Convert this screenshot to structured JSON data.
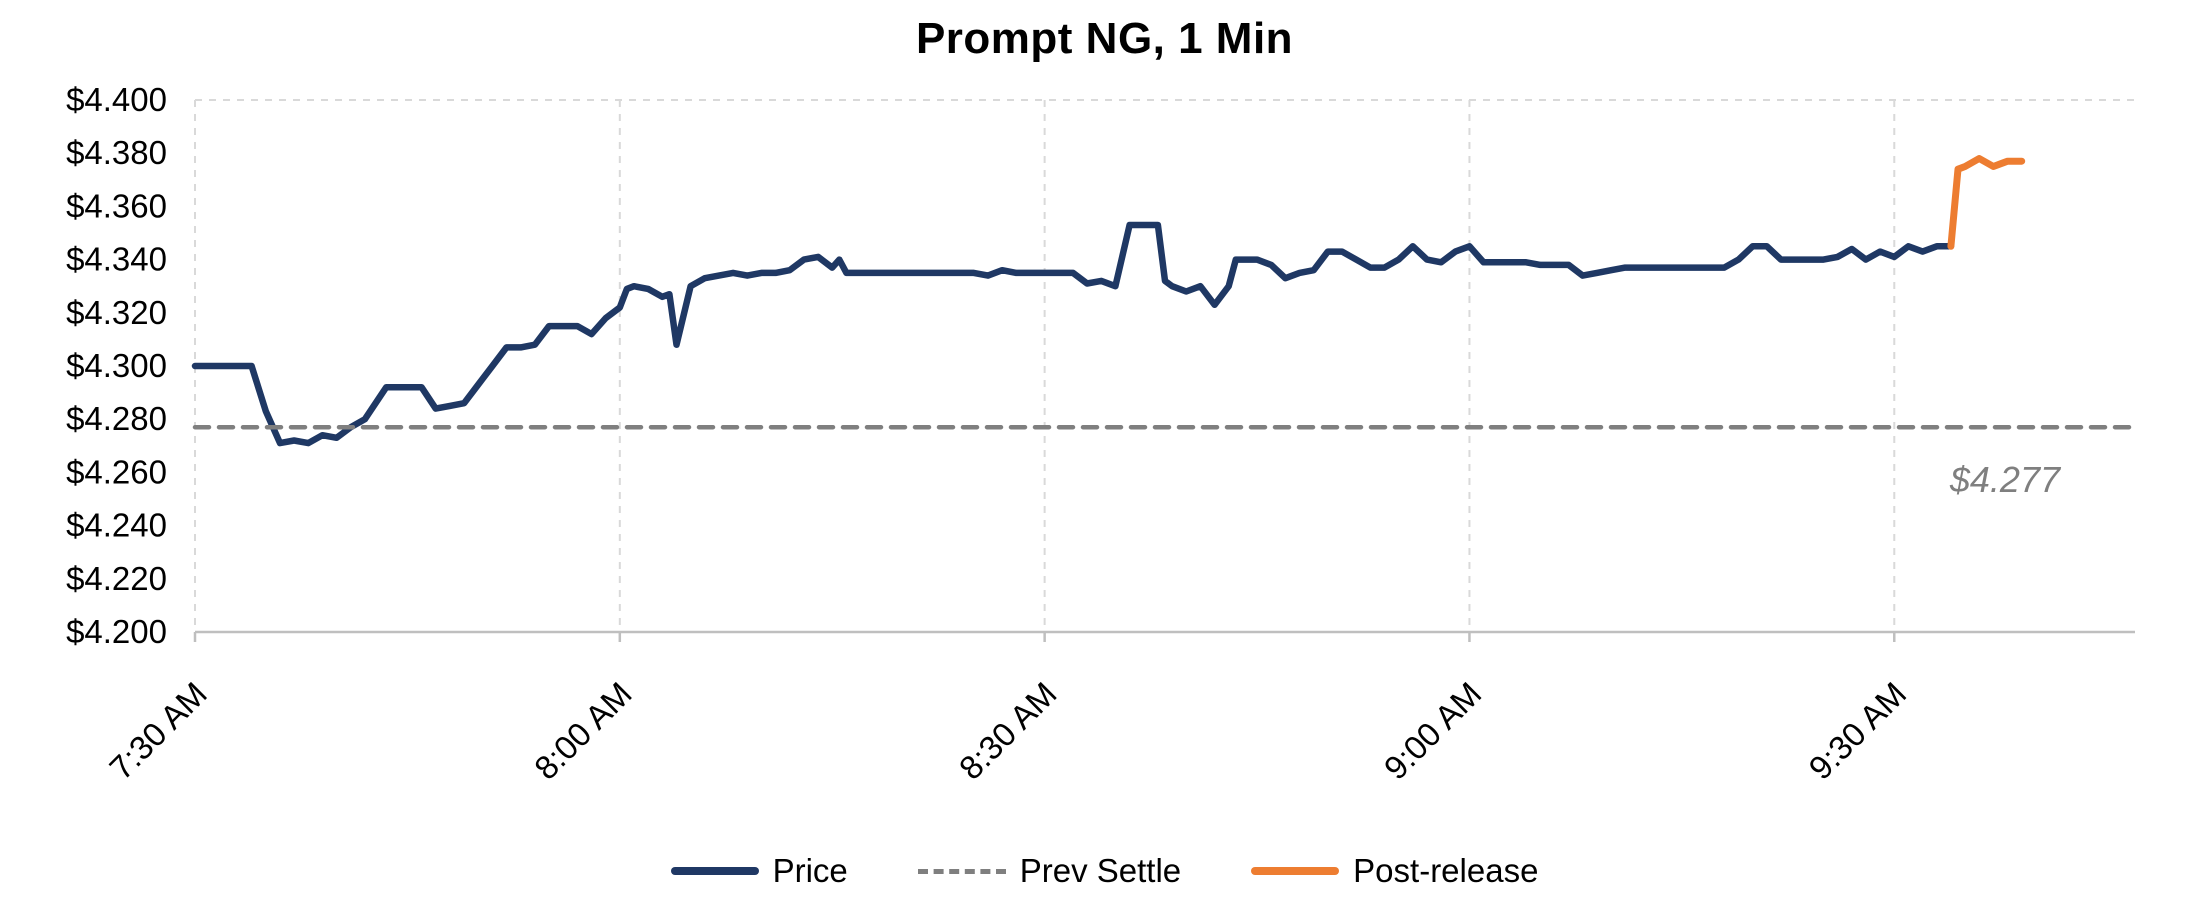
{
  "title": "Prompt NG, 1 Min",
  "annotation": {
    "text": "$4.277"
  },
  "legend": [
    {
      "key": "price",
      "label": "Price",
      "color": "#1f3864",
      "style": "solid"
    },
    {
      "key": "prev-settle",
      "label": "Prev Settle",
      "color": "#7f7f7f",
      "style": "dashed"
    },
    {
      "key": "post-release",
      "label": "Post-release",
      "color": "#ed7d31",
      "style": "solid"
    }
  ],
  "colors": {
    "price": "#1f3864",
    "prev_settle": "#7f7f7f",
    "post_release": "#ed7d31",
    "gridline": "#d9d9d9",
    "axis": "#bfbfbf",
    "annotation": "#7f7f7f",
    "title": "#000000",
    "tick_label": "#000000"
  },
  "chart_data": {
    "type": "line",
    "title": "Prompt NG, 1 Min",
    "xlabel": "",
    "ylabel": "",
    "ylim": [
      4.2,
      4.4
    ],
    "xlim_minutes": [
      0,
      137
    ],
    "x_start_time": "7:30 AM",
    "grid": "vertical-dashed",
    "legend_position": "bottom-center",
    "prev_settle_value": 4.277,
    "y_ticks": [
      {
        "value": 4.2,
        "label": "$4.200"
      },
      {
        "value": 4.22,
        "label": "$4.220"
      },
      {
        "value": 4.24,
        "label": "$4.240"
      },
      {
        "value": 4.26,
        "label": "$4.260"
      },
      {
        "value": 4.28,
        "label": "$4.280"
      },
      {
        "value": 4.3,
        "label": "$4.300"
      },
      {
        "value": 4.32,
        "label": "$4.320"
      },
      {
        "value": 4.34,
        "label": "$4.340"
      },
      {
        "value": 4.36,
        "label": "$4.360"
      },
      {
        "value": 4.38,
        "label": "$4.380"
      },
      {
        "value": 4.4,
        "label": "$4.400"
      }
    ],
    "x_ticks": [
      {
        "minute": 0,
        "label": "7:30 AM"
      },
      {
        "minute": 30,
        "label": "8:00 AM"
      },
      {
        "minute": 60,
        "label": "8:30 AM"
      },
      {
        "minute": 90,
        "label": "9:00 AM"
      },
      {
        "minute": 120,
        "label": "9:30 AM"
      }
    ],
    "series": [
      {
        "name": "Price",
        "color": "#1f3864",
        "width": 6.5,
        "dash": null,
        "points": [
          [
            0,
            4.3
          ],
          [
            1,
            4.3
          ],
          [
            2,
            4.3
          ],
          [
            3,
            4.3
          ],
          [
            4,
            4.3
          ],
          [
            5,
            4.283
          ],
          [
            6,
            4.271
          ],
          [
            7,
            4.272
          ],
          [
            8,
            4.271
          ],
          [
            9,
            4.274
          ],
          [
            10,
            4.273
          ],
          [
            11,
            4.277
          ],
          [
            12,
            4.28
          ],
          [
            13,
            4.288
          ],
          [
            13.5,
            4.292
          ],
          [
            14,
            4.292
          ],
          [
            15,
            4.292
          ],
          [
            16,
            4.292
          ],
          [
            17,
            4.284
          ],
          [
            18,
            4.285
          ],
          [
            19,
            4.286
          ],
          [
            20,
            4.293
          ],
          [
            21,
            4.3
          ],
          [
            22,
            4.307
          ],
          [
            23,
            4.307
          ],
          [
            24,
            4.308
          ],
          [
            25,
            4.315
          ],
          [
            26,
            4.315
          ],
          [
            27,
            4.315
          ],
          [
            28,
            4.312
          ],
          [
            29,
            4.318
          ],
          [
            30,
            4.322
          ],
          [
            30.5,
            4.329
          ],
          [
            31,
            4.33
          ],
          [
            32,
            4.329
          ],
          [
            33,
            4.326
          ],
          [
            33.5,
            4.327
          ],
          [
            34,
            4.308
          ],
          [
            35,
            4.33
          ],
          [
            36,
            4.333
          ],
          [
            37,
            4.334
          ],
          [
            38,
            4.335
          ],
          [
            39,
            4.334
          ],
          [
            40,
            4.335
          ],
          [
            41,
            4.335
          ],
          [
            42,
            4.336
          ],
          [
            43,
            4.34
          ],
          [
            44,
            4.341
          ],
          [
            45,
            4.337
          ],
          [
            45.5,
            4.34
          ],
          [
            46,
            4.335
          ],
          [
            47,
            4.335
          ],
          [
            48,
            4.335
          ],
          [
            49,
            4.335
          ],
          [
            50,
            4.335
          ],
          [
            51,
            4.335
          ],
          [
            52,
            4.335
          ],
          [
            53,
            4.335
          ],
          [
            54,
            4.335
          ],
          [
            55,
            4.335
          ],
          [
            56,
            4.334
          ],
          [
            57,
            4.336
          ],
          [
            58,
            4.335
          ],
          [
            59,
            4.335
          ],
          [
            60,
            4.335
          ],
          [
            61,
            4.335
          ],
          [
            62,
            4.335
          ],
          [
            63,
            4.331
          ],
          [
            64,
            4.332
          ],
          [
            65,
            4.33
          ],
          [
            66,
            4.353
          ],
          [
            67,
            4.353
          ],
          [
            68,
            4.353
          ],
          [
            68.5,
            4.332
          ],
          [
            69,
            4.33
          ],
          [
            70,
            4.328
          ],
          [
            71,
            4.33
          ],
          [
            72,
            4.323
          ],
          [
            73,
            4.33
          ],
          [
            73.5,
            4.34
          ],
          [
            74,
            4.34
          ],
          [
            75,
            4.34
          ],
          [
            76,
            4.338
          ],
          [
            77,
            4.333
          ],
          [
            78,
            4.335
          ],
          [
            79,
            4.336
          ],
          [
            80,
            4.343
          ],
          [
            81,
            4.343
          ],
          [
            82,
            4.34
          ],
          [
            83,
            4.337
          ],
          [
            84,
            4.337
          ],
          [
            85,
            4.34
          ],
          [
            86,
            4.345
          ],
          [
            87,
            4.34
          ],
          [
            88,
            4.339
          ],
          [
            89,
            4.343
          ],
          [
            90,
            4.345
          ],
          [
            91,
            4.339
          ],
          [
            92,
            4.339
          ],
          [
            93,
            4.339
          ],
          [
            94,
            4.339
          ],
          [
            95,
            4.338
          ],
          [
            96,
            4.338
          ],
          [
            97,
            4.338
          ],
          [
            98,
            4.334
          ],
          [
            99,
            4.335
          ],
          [
            100,
            4.336
          ],
          [
            101,
            4.337
          ],
          [
            102,
            4.337
          ],
          [
            103,
            4.337
          ],
          [
            104,
            4.337
          ],
          [
            105,
            4.337
          ],
          [
            106,
            4.337
          ],
          [
            107,
            4.337
          ],
          [
            108,
            4.337
          ],
          [
            109,
            4.34
          ],
          [
            110,
            4.345
          ],
          [
            111,
            4.345
          ],
          [
            112,
            4.34
          ],
          [
            113,
            4.34
          ],
          [
            114,
            4.34
          ],
          [
            115,
            4.34
          ],
          [
            116,
            4.341
          ],
          [
            117,
            4.344
          ],
          [
            118,
            4.34
          ],
          [
            119,
            4.343
          ],
          [
            120,
            4.341
          ],
          [
            121,
            4.345
          ],
          [
            122,
            4.343
          ],
          [
            123,
            4.345
          ],
          [
            124,
            4.345
          ]
        ]
      },
      {
        "name": "Prev Settle",
        "color": "#7f7f7f",
        "width": 4.5,
        "dash": "14 10",
        "points": [
          [
            0,
            4.277
          ],
          [
            137,
            4.277
          ]
        ]
      },
      {
        "name": "Post-release",
        "color": "#ed7d31",
        "width": 7,
        "dash": null,
        "points": [
          [
            124,
            4.345
          ],
          [
            124.5,
            4.374
          ],
          [
            125,
            4.375
          ],
          [
            126,
            4.378
          ],
          [
            127,
            4.375
          ],
          [
            127.5,
            4.376
          ],
          [
            128,
            4.377
          ],
          [
            129,
            4.377
          ]
        ]
      }
    ]
  }
}
